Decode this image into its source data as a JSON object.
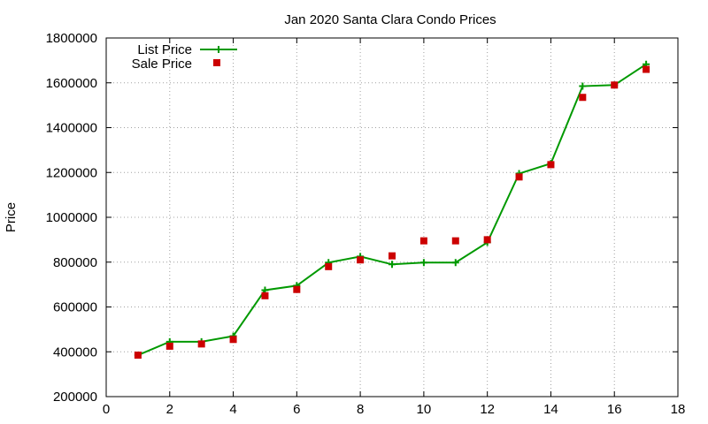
{
  "chart_data": {
    "type": "line",
    "title": "Jan 2020 Santa Clara Condo Prices",
    "xlabel": "",
    "ylabel": "Price",
    "xlim": [
      0,
      18
    ],
    "ylim": [
      200000,
      1800000
    ],
    "x_ticks": [
      "0",
      "2",
      "4",
      "6",
      "8",
      "10",
      "12",
      "14",
      "16",
      "18"
    ],
    "y_ticks": [
      "200000",
      "400000",
      "600000",
      "800000",
      "1000000",
      "1200000",
      "1400000",
      "1600000",
      "1800000"
    ],
    "grid": true,
    "legend_position": "top-left",
    "series": [
      {
        "name": "List Price",
        "style": "line-with-plus-markers",
        "color": "#009900",
        "x": [
          1,
          2,
          3,
          4,
          5,
          6,
          7,
          8,
          9,
          10,
          11,
          12,
          13,
          14,
          15,
          16,
          17
        ],
        "y": [
          385000,
          445000,
          445000,
          470000,
          675000,
          695000,
          798000,
          825000,
          790000,
          798000,
          798000,
          888000,
          1195000,
          1240000,
          1585000,
          1590000,
          1683000
        ]
      },
      {
        "name": "Sale Price",
        "style": "square-markers",
        "color": "#cc0000",
        "x": [
          1,
          2,
          3,
          4,
          5,
          6,
          7,
          8,
          9,
          10,
          11,
          12,
          13,
          14,
          15,
          16,
          17
        ],
        "y": [
          385000,
          425000,
          435000,
          455000,
          650000,
          678000,
          780000,
          810000,
          828000,
          895000,
          895000,
          900000,
          1180000,
          1235000,
          1535000,
          1590000,
          1660000
        ]
      }
    ]
  }
}
